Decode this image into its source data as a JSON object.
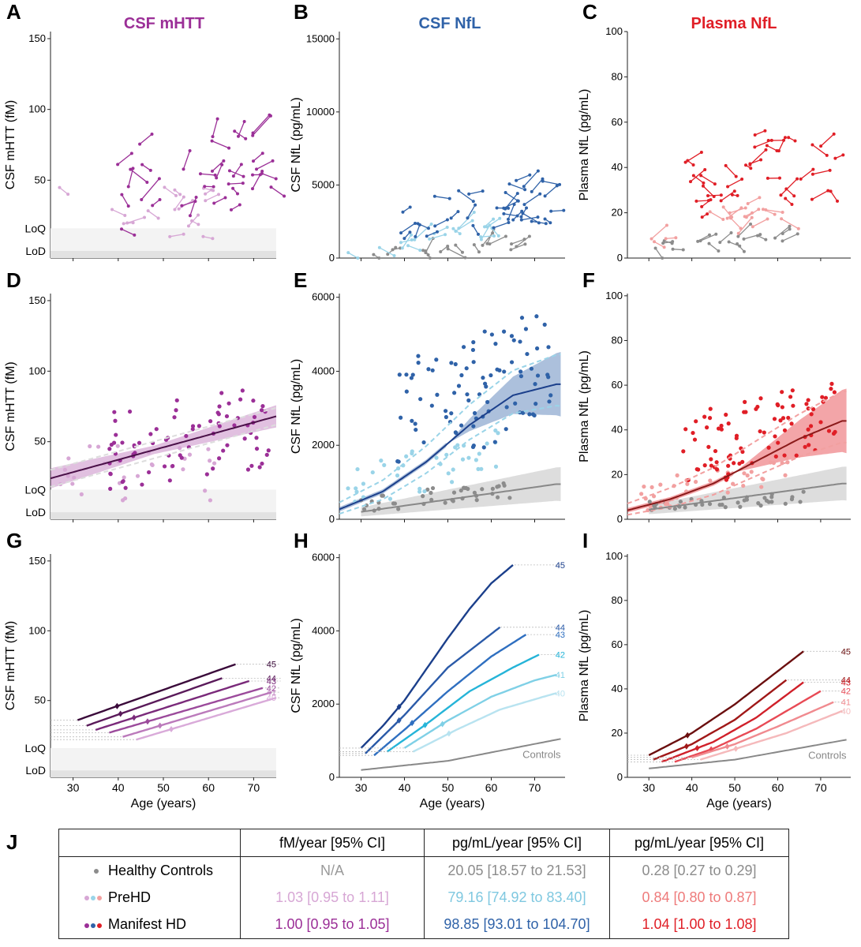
{
  "panel_titles": {
    "A": "CSF mHTT",
    "B": "CSF NfL",
    "C": "Plasma NfL"
  },
  "panel_letters": [
    "A",
    "B",
    "C",
    "D",
    "E",
    "F",
    "G",
    "H",
    "I",
    "J"
  ],
  "colors": {
    "mhtt_manifest": "#9b2f97",
    "mhtt_prehd": "#d7a7d5",
    "mhtt_dark": "#4a1048",
    "nfl_manifest": "#2f62a8",
    "nfl_prehd": "#9ad4e8",
    "nfl_dark": "#1b3f8b",
    "pnfl_manifest": "#e01e26",
    "pnfl_prehd": "#f2a0a0",
    "pnfl_dark": "#8b1a1a",
    "controls": "#8c8c8c"
  },
  "axis": {
    "xlabel": "Age (years)",
    "ylabel_mhtt": "CSF mHTT (fM)",
    "ylabel_csfnfl": "CSF NfL (pg/mL)",
    "ylabel_pnfl": "Plasma NfL (pg/mL)",
    "loq": "LoQ",
    "lod": "LoD",
    "controls_label": "Controls"
  },
  "chart_data": [
    {
      "panel": "A",
      "type": "line",
      "xlabel": "",
      "ylabel": "CSF mHTT (fM)",
      "xlim": [
        25,
        75
      ],
      "ylim": [
        -5,
        155
      ],
      "yticks": [
        50,
        100,
        150
      ],
      "xticks": [
        30,
        40,
        50,
        60,
        70
      ],
      "detection_limits": {
        "LoQ": 16,
        "LoD": 0
      },
      "note_series": "longitudinal participant trajectories (PreHD, Manifest HD)"
    },
    {
      "panel": "B",
      "type": "line",
      "xlabel": "",
      "ylabel": "CSF NfL (pg/mL)",
      "xlim": [
        25,
        77
      ],
      "ylim": [
        0,
        15500
      ],
      "yticks": [
        0,
        5000,
        10000,
        15000
      ],
      "note_series": "longitudinal trajectories (Controls, PreHD, Manifest HD)"
    },
    {
      "panel": "C",
      "type": "line",
      "xlabel": "",
      "ylabel": "Plasma NfL (pg/mL)",
      "xlim": [
        25,
        77
      ],
      "ylim": [
        0,
        100
      ],
      "yticks": [
        0,
        20,
        40,
        60,
        80,
        100
      ]
    },
    {
      "panel": "D",
      "type": "scatter",
      "ylabel": "CSF mHTT (fM)",
      "xlim": [
        25,
        75
      ],
      "ylim": [
        -5,
        155
      ],
      "yticks": [
        50,
        100,
        150
      ],
      "fit": {
        "x": [
          25,
          75
        ],
        "y": [
          24,
          68
        ]
      }
    },
    {
      "panel": "E",
      "type": "scatter",
      "ylabel": "CSF NfL (pg/mL)",
      "xlim": [
        25,
        77
      ],
      "ylim": [
        0,
        6100
      ],
      "yticks": [
        0,
        2000,
        4000,
        6000
      ],
      "fits": [
        {
          "name": "HD",
          "x": [
            25,
            35,
            45,
            55,
            65,
            75
          ],
          "y": [
            270,
            750,
            1550,
            2550,
            3350,
            3650
          ]
        },
        {
          "name": "Controls",
          "x": [
            30,
            75
          ],
          "y": [
            200,
            950
          ]
        }
      ]
    },
    {
      "panel": "F",
      "type": "scatter",
      "ylabel": "Plasma NfL (pg/mL)",
      "xlim": [
        25,
        77
      ],
      "ylim": [
        0,
        101
      ],
      "yticks": [
        0,
        20,
        40,
        60,
        80,
        100
      ],
      "fits": [
        {
          "name": "HD",
          "x": [
            25,
            35,
            45,
            55,
            65,
            75
          ],
          "y": [
            4,
            9,
            16,
            26,
            36,
            44
          ]
        },
        {
          "name": "Controls",
          "x": [
            25,
            75
          ],
          "y": [
            3,
            16
          ]
        }
      ]
    },
    {
      "panel": "G",
      "type": "line",
      "xlabel": "Age (years)",
      "ylabel": "CSF mHTT (fM)",
      "xlim": [
        25,
        75
      ],
      "ylim": [
        -5,
        155
      ],
      "yticks": [
        50,
        100,
        150
      ],
      "xticks": [
        30,
        40,
        50,
        60,
        70
      ],
      "series": [
        {
          "name": "45",
          "x": [
            31,
            66
          ],
          "y": [
            36,
            76
          ]
        },
        {
          "name": "44",
          "x": [
            33,
            63
          ],
          "y": [
            32,
            66
          ]
        },
        {
          "name": "43",
          "x": [
            35,
            69
          ],
          "y": [
            29,
            64
          ]
        },
        {
          "name": "42",
          "x": [
            38,
            72
          ],
          "y": [
            27,
            59
          ]
        },
        {
          "name": "41",
          "x": [
            41,
            74
          ],
          "y": [
            24,
            56
          ]
        },
        {
          "name": "40",
          "x": [
            44,
            75
          ],
          "y": [
            22,
            52
          ]
        }
      ]
    },
    {
      "panel": "H",
      "type": "line",
      "xlabel": "Age (years)",
      "ylabel": "CSF NfL (pg/mL)",
      "xlim": [
        25,
        77
      ],
      "ylim": [
        0,
        6100
      ],
      "yticks": [
        0,
        2000,
        4000,
        6000
      ],
      "xticks": [
        30,
        40,
        50,
        60,
        70
      ],
      "series": [
        {
          "name": "45",
          "x": [
            30,
            35,
            40,
            45,
            50,
            55,
            60,
            65
          ],
          "y": [
            800,
            1400,
            2100,
            2950,
            3800,
            4600,
            5300,
            5800
          ]
        },
        {
          "name": "44",
          "x": [
            31,
            40,
            50,
            62
          ],
          "y": [
            650,
            1700,
            3000,
            4100
          ]
        },
        {
          "name": "43",
          "x": [
            33,
            40,
            50,
            60,
            68
          ],
          "y": [
            600,
            1300,
            2350,
            3300,
            3900
          ]
        },
        {
          "name": "42",
          "x": [
            36,
            45,
            55,
            65,
            71
          ],
          "y": [
            700,
            1450,
            2350,
            3000,
            3350
          ]
        },
        {
          "name": "41",
          "x": [
            40,
            50,
            60,
            70,
            75
          ],
          "y": [
            800,
            1550,
            2200,
            2650,
            2800
          ]
        },
        {
          "name": "40",
          "x": [
            42,
            52,
            62,
            72,
            75
          ],
          "y": [
            700,
            1300,
            1850,
            2200,
            2300
          ]
        },
        {
          "name": "Controls",
          "x": [
            30,
            50,
            76
          ],
          "y": [
            200,
            450,
            1050
          ]
        }
      ]
    },
    {
      "panel": "I",
      "type": "line",
      "xlabel": "Age (years)",
      "ylabel": "Plasma NfL (pg/mL)",
      "xlim": [
        25,
        77
      ],
      "ylim": [
        0,
        101
      ],
      "yticks": [
        0,
        20,
        40,
        60,
        80,
        100
      ],
      "xticks": [
        30,
        40,
        50,
        60,
        70
      ],
      "series": [
        {
          "name": "45",
          "x": [
            30,
            40,
            50,
            60,
            66
          ],
          "y": [
            10,
            20,
            33,
            48,
            57
          ]
        },
        {
          "name": "44",
          "x": [
            31,
            40,
            50,
            62
          ],
          "y": [
            8,
            15,
            26,
            44
          ]
        },
        {
          "name": "43",
          "x": [
            33,
            45,
            55,
            66
          ],
          "y": [
            7,
            16,
            27,
            43
          ]
        },
        {
          "name": "42",
          "x": [
            36,
            45,
            55,
            70
          ],
          "y": [
            7,
            13,
            22,
            39
          ]
        },
        {
          "name": "41",
          "x": [
            40,
            50,
            60,
            73
          ],
          "y": [
            9,
            15,
            23,
            34
          ]
        },
        {
          "name": "40",
          "x": [
            42,
            52,
            62,
            75
          ],
          "y": [
            8,
            14,
            20,
            30
          ]
        },
        {
          "name": "Controls",
          "x": [
            30,
            50,
            76
          ],
          "y": [
            4,
            8,
            17
          ]
        }
      ]
    }
  ],
  "table": {
    "headers": [
      "",
      "fM/year [95% CI]",
      "pg/mL/year [95% CI]",
      "pg/mL/year [95% CI]"
    ],
    "rows": [
      {
        "label": "Healthy Controls",
        "values": [
          "N/A",
          "20.05 [18.57 to 21.53]",
          "0.28 [0.27 to 0.29]"
        ]
      },
      {
        "label": "PreHD",
        "values": [
          "1.03 [0.95 to 1.11]",
          "79.16 [74.92 to 83.40]",
          "0.84 [0.80 to 0.87]"
        ]
      },
      {
        "label": "Manifest HD",
        "values": [
          "1.00 [0.95 to 1.05]",
          "98.85 [93.01 to 104.70]",
          "1.04 [1.00 to 1.08]"
        ]
      }
    ]
  }
}
